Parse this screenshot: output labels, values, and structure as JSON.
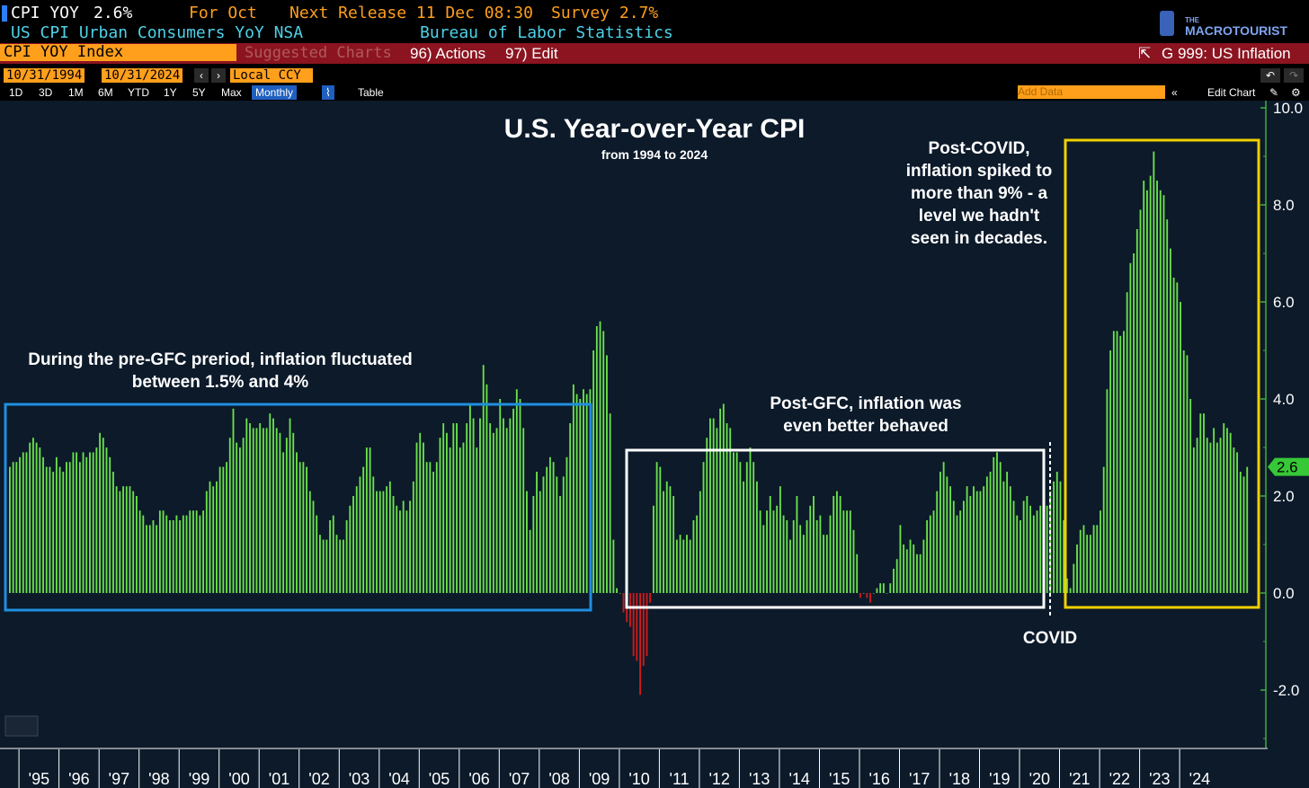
{
  "header": {
    "ticker": "CPI YOY",
    "value": "2.6%",
    "for_label": "For Oct",
    "next_release": "Next Release 11 Dec 08:30",
    "survey": "Survey 2.7%",
    "description": "US CPI Urban Consumers YoY NSA",
    "source": "Bureau of Labor Statistics",
    "logo_small": "THE",
    "logo_large": "MACROTOURIST"
  },
  "toolbar": {
    "index_name": "CPI YOY Index",
    "suggested": "Suggested Charts",
    "actions": "96) Actions",
    "edit": "97) Edit",
    "g_label": "G 999: US Inflation",
    "start_date": "10/31/1994",
    "end_date": "10/31/2024",
    "currency": "Local CCY",
    "periods": [
      "1D",
      "3D",
      "1M",
      "6M",
      "YTD",
      "1Y",
      "5Y",
      "Max"
    ],
    "frequency": "Monthly",
    "table": "Table",
    "add_data": "Add Data",
    "edit_chart": "Edit Chart"
  },
  "colors": {
    "positive_bar": "#6be24a",
    "negative_bar": "#d11a1a",
    "background": "#0c1a2a",
    "box_pre_gfc": "#1f8fe0",
    "box_post_gfc": "#ffffff",
    "box_covid": "#f0d000",
    "last_value": "#37c837"
  },
  "annotations": {
    "pre_gfc": [
      "During the pre-GFC preriod, inflation fluctuated",
      "between 1.5% and 4%"
    ],
    "post_gfc": [
      "Post-GFC, inflation was",
      "even better behaved"
    ],
    "post_covid": [
      "Post-COVID,",
      "inflation spiked to",
      "more than 9% - a",
      "level we hadn't",
      "seen in decades."
    ],
    "covid": "COVID"
  },
  "chart_data": {
    "type": "bar",
    "title": "U.S. Year-over-Year CPI",
    "subtitle": "from 1994 to 2024",
    "frequency": "monthly",
    "start": "1994-10",
    "ylim": [
      -3.2,
      10.0
    ],
    "yticks": [
      10.0,
      8.0,
      6.0,
      4.0,
      2.0,
      0.0,
      -2.0
    ],
    "ytick_labels": [
      "10.0",
      "8.0",
      "6.0",
      "4.0",
      "2.0",
      "0.0",
      "-2.0"
    ],
    "last_value_label": "2.6",
    "xtick_labels": [
      "'95",
      "'96",
      "'97",
      "'98",
      "'99",
      "'00",
      "'01",
      "'02",
      "'03",
      "'04",
      "'05",
      "'06",
      "'07",
      "'08",
      "'09",
      "'10",
      "'11",
      "'12",
      "'13",
      "'14",
      "'15",
      "'16",
      "'17",
      "'18",
      "'19",
      "'20",
      "'21",
      "'22",
      "'23",
      "'24"
    ],
    "values": [
      2.6,
      2.7,
      2.7,
      2.8,
      2.9,
      2.9,
      3.1,
      3.2,
      3.1,
      3.0,
      2.8,
      2.6,
      2.6,
      2.5,
      2.8,
      2.6,
      2.5,
      2.7,
      2.7,
      2.9,
      2.9,
      2.7,
      2.9,
      2.8,
      2.9,
      2.9,
      3.0,
      3.3,
      3.2,
      3.0,
      2.8,
      2.5,
      2.2,
      2.1,
      2.2,
      2.2,
      2.2,
      2.1,
      2.0,
      1.7,
      1.6,
      1.4,
      1.4,
      1.5,
      1.4,
      1.7,
      1.7,
      1.6,
      1.5,
      1.5,
      1.6,
      1.5,
      1.6,
      1.6,
      1.7,
      1.7,
      1.7,
      1.6,
      1.7,
      2.1,
      2.3,
      2.2,
      2.3,
      2.6,
      2.6,
      2.7,
      3.2,
      3.8,
      3.1,
      3.0,
      3.2,
      3.6,
      3.5,
      3.4,
      3.4,
      3.5,
      3.4,
      3.4,
      3.7,
      3.6,
      3.4,
      3.3,
      2.9,
      3.2,
      3.6,
      3.3,
      2.9,
      2.7,
      2.7,
      2.6,
      2.1,
      1.9,
      1.6,
      1.2,
      1.1,
      1.1,
      1.5,
      1.6,
      1.2,
      1.1,
      1.1,
      1.5,
      1.8,
      2.0,
      2.2,
      2.4,
      2.6,
      3.0,
      3.0,
      2.4,
      2.1,
      2.1,
      2.1,
      2.2,
      2.3,
      2.0,
      1.8,
      1.7,
      1.9,
      1.7,
      1.9,
      2.3,
      3.1,
      3.3,
      3.1,
      2.7,
      2.7,
      2.5,
      2.7,
      3.2,
      3.5,
      3.3,
      3.0,
      3.5,
      3.5,
      3.0,
      3.1,
      3.5,
      3.9,
      3.6,
      3.0,
      3.6,
      4.7,
      4.3,
      3.5,
      3.3,
      3.4,
      4.0,
      3.6,
      3.4,
      3.6,
      3.8,
      4.2,
      4.0,
      3.4,
      2.1,
      1.3,
      2.0,
      2.5,
      2.1,
      2.4,
      2.6,
      2.8,
      2.7,
      2.4,
      2.0,
      2.4,
      2.8,
      3.5,
      4.3,
      4.1,
      4.0,
      4.2,
      4.1,
      4.2,
      5.0,
      5.5,
      5.6,
      5.4,
      4.9,
      3.7,
      1.1,
      0.1,
      0.0,
      -0.4,
      -0.6,
      -0.7,
      -1.3,
      -1.4,
      -2.1,
      -1.5,
      -1.3,
      -0.2,
      1.8,
      2.7,
      2.6,
      2.1,
      2.3,
      2.2,
      2.0,
      1.1,
      1.2,
      1.1,
      1.2,
      1.1,
      1.5,
      1.6,
      2.1,
      2.7,
      3.2,
      3.6,
      3.6,
      3.4,
      3.8,
      3.9,
      3.5,
      3.4,
      2.9,
      2.9,
      2.7,
      2.3,
      2.7,
      3.0,
      2.7,
      2.3,
      1.7,
      1.4,
      1.7,
      2.0,
      1.7,
      1.8,
      2.2,
      1.6,
      1.5,
      1.1,
      1.5,
      2.0,
      1.4,
      1.2,
      1.5,
      1.8,
      2.0,
      1.5,
      1.6,
      1.2,
      1.2,
      1.6,
      2.0,
      2.1,
      2.0,
      1.7,
      1.7,
      1.7,
      1.3,
      0.8,
      -0.1,
      0.0,
      -0.1,
      -0.2,
      0.0,
      0.1,
      0.2,
      0.2,
      0.0,
      0.2,
      0.5,
      0.7,
      1.4,
      1.0,
      0.9,
      1.1,
      1.0,
      0.8,
      0.8,
      1.1,
      1.5,
      1.6,
      1.7,
      2.1,
      2.5,
      2.7,
      2.4,
      2.2,
      1.9,
      1.6,
      1.7,
      1.9,
      2.2,
      2.0,
      2.2,
      2.1,
      2.1,
      2.2,
      2.4,
      2.5,
      2.8,
      2.9,
      2.7,
      2.3,
      2.5,
      2.2,
      1.9,
      1.6,
      1.5,
      1.9,
      2.0,
      1.8,
      1.6,
      1.7,
      1.8,
      1.7,
      1.8,
      2.1,
      2.3,
      2.5,
      2.3,
      1.5,
      0.3,
      0.1,
      0.6,
      1.0,
      1.3,
      1.4,
      1.2,
      1.2,
      1.4,
      1.4,
      1.7,
      2.6,
      4.2,
      5.0,
      5.4,
      5.4,
      5.3,
      5.4,
      6.2,
      6.8,
      7.0,
      7.5,
      7.9,
      8.5,
      8.3,
      8.6,
      9.1,
      8.5,
      8.3,
      8.2,
      7.7,
      7.1,
      6.5,
      6.4,
      6.0,
      5.0,
      4.9,
      4.0,
      3.0,
      3.2,
      3.7,
      3.7,
      3.2,
      3.1,
      3.4,
      3.1,
      3.2,
      3.5,
      3.4,
      3.3,
      3.0,
      2.9,
      2.5,
      2.4,
      2.6
    ]
  }
}
